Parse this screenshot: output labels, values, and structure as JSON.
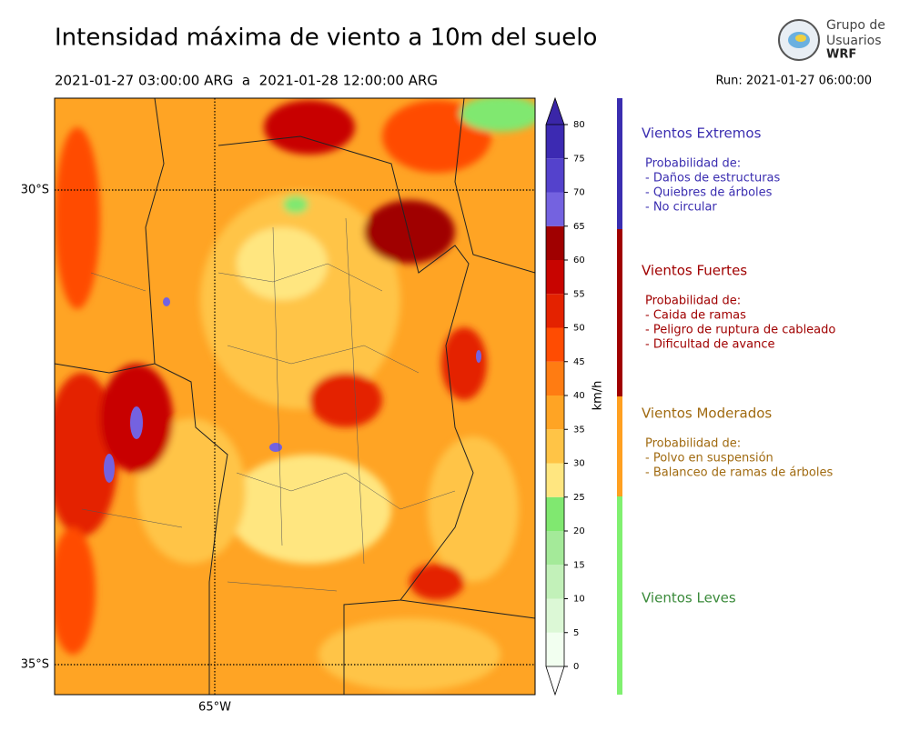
{
  "header": {
    "title": "Intensidad máxima de viento a 10m del suelo",
    "period": "2021-01-27 03:00:00 ARG  a  2021-01-28 12:00:00 ARG",
    "run": "Run: 2021-01-27 06:00:00",
    "logo": [
      "Grupo de",
      "Usuarios",
      "WRF"
    ]
  },
  "map": {
    "lat_labels": [
      "30°S",
      "35°S"
    ],
    "lon_labels": [
      "65°W"
    ]
  },
  "colorbar": {
    "label": "km/h",
    "levels": [
      0,
      5,
      10,
      15,
      20,
      25,
      30,
      35,
      40,
      45,
      50,
      55,
      60,
      65,
      70,
      75,
      80
    ],
    "colors": [
      "#f2fff0",
      "#dcf8d6",
      "#c2f1b9",
      "#a4ea99",
      "#80e870",
      "#ffe680",
      "#ffc446",
      "#ffa424",
      "#ff7c12",
      "#ff4c02",
      "#e42200",
      "#c80400",
      "#a00000",
      "#7462e0",
      "#5442cc",
      "#3c2ab2"
    ],
    "under_color": "#ffffff",
    "over_color": "#3a26a8"
  },
  "legend": [
    {
      "name": "Vientos Extremos",
      "color": "#3a2db0",
      "text_color": "#3a2db0",
      "heading": "Probabilidad de:",
      "items": [
        "- Daños de estructuras",
        "- Quiebres de árboles",
        "- No circular"
      ]
    },
    {
      "name": "Vientos Fuertes",
      "color": "#a00000",
      "text_color": "#a00000",
      "heading": "Probabilidad de:",
      "items": [
        "- Caida de ramas",
        "- Peligro de ruptura de cableado",
        "- Dificultad de avance"
      ]
    },
    {
      "name": "Vientos Moderados",
      "color": "#ffa020",
      "text_color": "#a06a10",
      "heading": "Probabilidad de:",
      "items": [
        "- Polvo en suspensión",
        "- Balanceo de ramas de árboles"
      ]
    },
    {
      "name": "Vientos Leves",
      "color": "#80f070",
      "text_color": "#3a8a3a",
      "heading": null,
      "items": []
    }
  ]
}
